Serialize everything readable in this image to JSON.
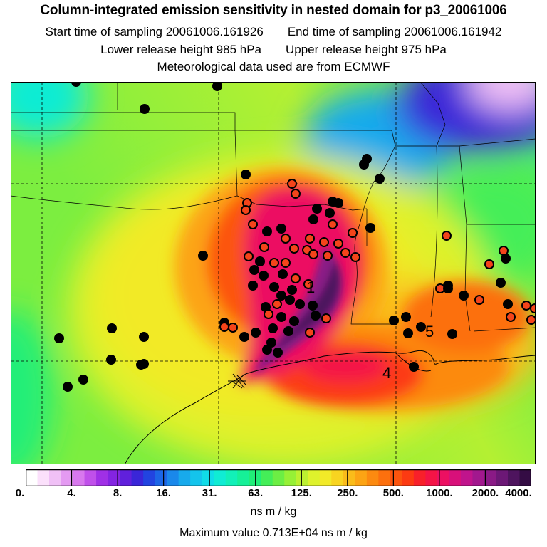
{
  "title": "Column-integrated emission sensitivity in nested domain for p3_20061006",
  "start_label": "Start time of sampling 20061006.161926",
  "end_label": "End time of sampling 20061006.161942",
  "lower_label": "Lower release height  985 hPa",
  "upper_label": "Upper release height  975 hPa",
  "met_label": "Meteorological data used are from ECMWF",
  "colorbar": {
    "ticks": [
      "0.",
      "4.",
      "8.",
      "16.",
      "31.",
      "63.",
      "125.",
      "250.",
      "500.",
      "1000.",
      "2000.",
      "4000."
    ],
    "colors": [
      "#ffffff",
      "#fbe0fb",
      "#f0c0f6",
      "#e49af2",
      "#d878ee",
      "#c050ea",
      "#a030e6",
      "#8424e2",
      "#6020dc",
      "#3a26d8",
      "#2244e0",
      "#1c66e6",
      "#1a88ea",
      "#18aaec",
      "#14c4ec",
      "#10dce8",
      "#10ecd4",
      "#12f0b8",
      "#16f098",
      "#20ee78",
      "#44ee58",
      "#6cee44",
      "#96f036",
      "#bcf030",
      "#def22c",
      "#f2ea28",
      "#f8d420",
      "#fabc1a",
      "#fca414",
      "#fc8a10",
      "#fc700e",
      "#fc540e",
      "#fc3a12",
      "#f8202a",
      "#f41446",
      "#ec1062",
      "#d8107a",
      "#c0148c",
      "#a2188e",
      "#8a1a86",
      "#6c1876",
      "#4e145e",
      "#340c44"
    ],
    "units": "ns m / kg"
  },
  "max_label": "Maximum value  0.713E+04 ns m / kg",
  "map": {
    "labels": [
      "1",
      "4",
      "5"
    ],
    "colors": {
      "background_low": "#10ecd4",
      "mid": "#96f036",
      "plume_yellow": "#f2ea28",
      "plume_orange": "#fca414",
      "plume_red": "#fc3a12",
      "plume_pink": "#ec1062",
      "plume_core": "#6c1876",
      "marker_red": "#f4441a",
      "marker_black": "#000000"
    }
  }
}
